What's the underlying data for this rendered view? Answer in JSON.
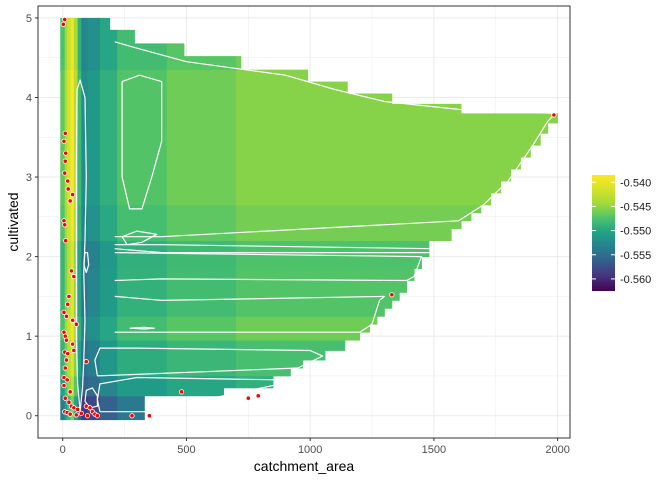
{
  "chart_data": {
    "type": "heatmap",
    "title": "",
    "xlabel": "catchment_area",
    "ylabel": "cultivated",
    "xlim": [
      -100,
      2050
    ],
    "ylim": [
      -0.28,
      5.15
    ],
    "x_ticks": [
      0,
      500,
      1000,
      1500,
      2000
    ],
    "x_tick_labels": [
      "0",
      "500",
      "1000",
      "1500",
      "2000"
    ],
    "y_ticks": [
      0,
      1,
      2,
      3,
      4,
      5
    ],
    "y_tick_labels": [
      "0",
      "1",
      "2",
      "3",
      "4",
      "5"
    ],
    "grid": true,
    "legend_position": "right",
    "color_scale": {
      "palette": "viridis",
      "min": -0.5625,
      "max": -0.5385,
      "breaks": [
        -0.54,
        -0.545,
        -0.55,
        -0.555,
        -0.56
      ],
      "break_labels": [
        "-0.540",
        "-0.545",
        "-0.550",
        "-0.555",
        "-0.560"
      ]
    },
    "colors": {
      "panel_border": "#333333",
      "grid": "#ebebeb",
      "contour": "#ffffff",
      "points": "#ff0000"
    },
    "y_steps": [
      {
        "y0": -0.05,
        "y1": 0.25,
        "xmax": 330
      },
      {
        "y0": 0.25,
        "y1": 0.35,
        "xmax": 650
      },
      {
        "y0": 0.35,
        "y1": 0.5,
        "xmax": 850
      },
      {
        "y0": 0.5,
        "y1": 0.6,
        "xmax": 920
      },
      {
        "y0": 0.6,
        "y1": 0.7,
        "xmax": 970
      },
      {
        "y0": 0.7,
        "y1": 0.82,
        "xmax": 1060
      },
      {
        "y0": 0.82,
        "y1": 0.95,
        "xmax": 1140
      },
      {
        "y0": 0.95,
        "y1": 1.05,
        "xmax": 1200
      },
      {
        "y0": 1.05,
        "y1": 1.15,
        "xmax": 1240
      },
      {
        "y0": 1.15,
        "y1": 1.25,
        "xmax": 1270
      },
      {
        "y0": 1.25,
        "y1": 1.35,
        "xmax": 1300
      },
      {
        "y0": 1.35,
        "y1": 1.45,
        "xmax": 1330
      },
      {
        "y0": 1.45,
        "y1": 1.55,
        "xmax": 1360
      },
      {
        "y0": 1.55,
        "y1": 1.7,
        "xmax": 1390
      },
      {
        "y0": 1.7,
        "y1": 1.85,
        "xmax": 1420
      },
      {
        "y0": 1.85,
        "y1": 2.0,
        "xmax": 1450
      },
      {
        "y0": 2.0,
        "y1": 2.2,
        "xmax": 1480
      },
      {
        "y0": 2.2,
        "y1": 2.35,
        "xmax": 1570
      },
      {
        "y0": 2.35,
        "y1": 2.45,
        "xmax": 1610
      },
      {
        "y0": 2.45,
        "y1": 2.55,
        "xmax": 1650
      },
      {
        "y0": 2.55,
        "y1": 2.65,
        "xmax": 1690
      },
      {
        "y0": 2.65,
        "y1": 2.8,
        "xmax": 1730
      },
      {
        "y0": 2.8,
        "y1": 2.95,
        "xmax": 1770
      },
      {
        "y0": 2.95,
        "y1": 3.1,
        "xmax": 1810
      },
      {
        "y0": 3.1,
        "y1": 3.25,
        "xmax": 1850
      },
      {
        "y0": 3.25,
        "y1": 3.4,
        "xmax": 1890
      },
      {
        "y0": 3.4,
        "y1": 3.55,
        "xmax": 1930
      },
      {
        "y0": 3.55,
        "y1": 3.68,
        "xmax": 1960
      },
      {
        "y0": 3.68,
        "y1": 3.8,
        "xmax": 2000
      },
      {
        "y0": 3.8,
        "y1": 3.92,
        "xmax": 1610
      },
      {
        "y0": 3.92,
        "y1": 4.05,
        "xmax": 1330
      },
      {
        "y0": 4.05,
        "y1": 4.2,
        "xmax": 1150
      },
      {
        "y0": 4.2,
        "y1": 4.35,
        "xmax": 990
      },
      {
        "y0": 4.35,
        "y1": 4.52,
        "xmax": 720
      },
      {
        "y0": 4.52,
        "y1": 4.68,
        "xmax": 490
      },
      {
        "y0": 4.68,
        "y1": 4.85,
        "xmax": 290
      },
      {
        "y0": 4.85,
        "y1": 5.0,
        "xmax": 190
      }
    ],
    "x_bands": [
      {
        "x0": -10,
        "x1": 8,
        "value": -0.5475
      },
      {
        "x0": 8,
        "x1": 18,
        "value": -0.5445
      },
      {
        "x0": 18,
        "x1": 32,
        "value": -0.542
      },
      {
        "x0": 32,
        "x1": 45,
        "value": -0.5395
      },
      {
        "x0": 45,
        "x1": 60,
        "value": -0.544
      },
      {
        "x0": 60,
        "x1": 75,
        "value": -0.549
      },
      {
        "x0": 75,
        "x1": 100,
        "value": -0.553
      },
      {
        "x0": 100,
        "x1": 150,
        "value": -0.552
      },
      {
        "x0": 150,
        "x1": 220,
        "value": -0.55
      },
      {
        "x0": 220,
        "x1": 420,
        "value": -0.548
      },
      {
        "x0": 420,
        "x1": 700,
        "value": -0.547
      },
      {
        "x0": 700,
        "x1": 2050,
        "value": -0.5462
      }
    ],
    "y_modulation": [
      {
        "y0": -0.05,
        "y1": 0.25,
        "delta": -0.006
      },
      {
        "y0": 0.25,
        "y1": 0.5,
        "delta": -0.003
      },
      {
        "y0": 0.5,
        "y1": 0.9,
        "delta": -0.0015
      },
      {
        "y0": 0.9,
        "y1": 1.3,
        "delta": 0.0
      },
      {
        "y0": 1.3,
        "y1": 1.9,
        "delta": -0.001
      },
      {
        "y0": 1.9,
        "y1": 2.2,
        "delta": -0.0012
      },
      {
        "y0": 2.2,
        "y1": 2.6,
        "delta": 0.0002
      },
      {
        "y0": 2.6,
        "y1": 4.3,
        "delta": 0.0008
      },
      {
        "y0": 4.3,
        "y1": 5.0,
        "delta": 0.0
      }
    ],
    "contours": [
      {
        "points": [
          [
            150,
            0.05
          ],
          [
            330,
            0.05
          ],
          [
            650,
            0.25
          ],
          [
            850,
            0.38
          ],
          [
            880,
            0.45
          ],
          [
            300,
            0.48
          ],
          [
            150,
            0.4
          ],
          [
            140,
            0.2
          ],
          [
            150,
            0.05
          ]
        ]
      },
      {
        "points": [
          [
            140,
            0.5
          ],
          [
            950,
            0.6
          ],
          [
            1050,
            0.75
          ],
          [
            1000,
            0.82
          ],
          [
            300,
            0.85
          ],
          [
            150,
            0.85
          ],
          [
            130,
            0.7
          ],
          [
            140,
            0.5
          ]
        ]
      },
      {
        "points": [
          [
            210,
            1.05
          ],
          [
            1200,
            1.05
          ],
          [
            1250,
            1.15
          ],
          [
            1280,
            1.45
          ],
          [
            1300,
            1.5
          ],
          [
            400,
            1.45
          ],
          [
            210,
            1.5
          ]
        ]
      },
      {
        "points": [
          [
            210,
            2.05
          ],
          [
            1450,
            2.0
          ],
          [
            1420,
            1.75
          ],
          [
            1390,
            1.7
          ],
          [
            400,
            1.72
          ],
          [
            210,
            1.7
          ]
        ]
      },
      {
        "points": [
          [
            210,
            2.1
          ],
          [
            400,
            2.05
          ],
          [
            1480,
            2.05
          ],
          [
            1500,
            2.1
          ],
          [
            400,
            2.15
          ],
          [
            210,
            2.15
          ]
        ]
      },
      {
        "points": [
          [
            210,
            2.25
          ],
          [
            400,
            2.25
          ],
          [
            1600,
            2.45
          ],
          [
            1700,
            2.65
          ],
          [
            1800,
            2.95
          ],
          [
            1900,
            3.4
          ],
          [
            1960,
            3.7
          ],
          [
            1990,
            3.8
          ],
          [
            1600,
            3.85
          ],
          [
            1300,
            3.95
          ],
          [
            1100,
            4.1
          ],
          [
            900,
            4.28
          ],
          [
            500,
            4.45
          ],
          [
            300,
            4.62
          ],
          [
            210,
            4.7
          ]
        ]
      },
      {
        "points": [
          [
            240,
            2.25
          ],
          [
            300,
            2.32
          ],
          [
            380,
            2.28
          ],
          [
            320,
            2.18
          ],
          [
            260,
            2.15
          ],
          [
            240,
            2.25
          ]
        ]
      },
      {
        "points": [
          [
            240,
            3.0
          ],
          [
            270,
            2.6
          ],
          [
            320,
            2.6
          ],
          [
            360,
            3.0
          ],
          [
            400,
            3.45
          ],
          [
            400,
            4.2
          ],
          [
            310,
            4.28
          ],
          [
            240,
            4.2
          ],
          [
            240,
            3.45
          ],
          [
            240,
            3.0
          ]
        ]
      },
      {
        "points": [
          [
            70,
            0.05
          ],
          [
            60,
            0.4
          ],
          [
            55,
            1.0
          ],
          [
            55,
            1.6
          ],
          [
            55,
            2.4
          ],
          [
            55,
            3.2
          ],
          [
            58,
            4.1
          ],
          [
            70,
            4.22
          ],
          [
            90,
            4.0
          ],
          [
            95,
            3.0
          ],
          [
            90,
            2.2
          ],
          [
            85,
            1.8
          ],
          [
            90,
            1.2
          ],
          [
            85,
            0.7
          ],
          [
            80,
            0.35
          ],
          [
            70,
            0.05
          ]
        ]
      },
      {
        "points": [
          [
            90,
            0.18
          ],
          [
            110,
            0.1
          ],
          [
            140,
            0.12
          ],
          [
            140,
            0.25
          ],
          [
            120,
            0.35
          ],
          [
            95,
            0.32
          ],
          [
            90,
            0.18
          ]
        ]
      },
      {
        "points": [
          [
            85,
            1.9
          ],
          [
            95,
            1.8
          ],
          [
            105,
            1.9
          ],
          [
            100,
            2.05
          ],
          [
            90,
            2.05
          ],
          [
            85,
            1.9
          ]
        ]
      },
      {
        "points": [
          [
            270,
            1.1
          ],
          [
            330,
            1.09
          ],
          [
            370,
            1.1
          ],
          [
            330,
            1.11
          ],
          [
            270,
            1.1
          ]
        ]
      }
    ],
    "points": [
      [
        8,
        4.98
      ],
      [
        2,
        4.92
      ],
      [
        10,
        3.55
      ],
      [
        5,
        3.45
      ],
      [
        12,
        3.3
      ],
      [
        10,
        3.2
      ],
      [
        8,
        3.05
      ],
      [
        20,
        2.95
      ],
      [
        22,
        2.85
      ],
      [
        40,
        2.78
      ],
      [
        30,
        2.7
      ],
      [
        5,
        2.45
      ],
      [
        8,
        2.4
      ],
      [
        12,
        2.2
      ],
      [
        35,
        1.82
      ],
      [
        45,
        1.75
      ],
      [
        25,
        1.5
      ],
      [
        20,
        1.4
      ],
      [
        5,
        1.3
      ],
      [
        15,
        1.25
      ],
      [
        40,
        1.2
      ],
      [
        55,
        1.15
      ],
      [
        5,
        1.05
      ],
      [
        10,
        1.0
      ],
      [
        15,
        0.95
      ],
      [
        40,
        0.9
      ],
      [
        45,
        0.82
      ],
      [
        8,
        0.8
      ],
      [
        20,
        0.78
      ],
      [
        15,
        0.7
      ],
      [
        95,
        0.68
      ],
      [
        10,
        0.6
      ],
      [
        5,
        0.48
      ],
      [
        18,
        0.45
      ],
      [
        5,
        0.38
      ],
      [
        30,
        0.3
      ],
      [
        10,
        0.22
      ],
      [
        25,
        0.17
      ],
      [
        35,
        0.12
      ],
      [
        45,
        0.1
      ],
      [
        60,
        0.08
      ],
      [
        8,
        0.05
      ],
      [
        18,
        0.04
      ],
      [
        30,
        0.02
      ],
      [
        55,
        0.01
      ],
      [
        75,
        0.03
      ],
      [
        95,
        0.12
      ],
      [
        110,
        0.1
      ],
      [
        120,
        0.05
      ],
      [
        130,
        0.02
      ],
      [
        100,
        0.0
      ],
      [
        140,
        0.0
      ],
      [
        280,
        0.0
      ],
      [
        350,
        0.0
      ],
      [
        480,
        0.3
      ],
      [
        750,
        0.22
      ],
      [
        790,
        0.25
      ],
      [
        1330,
        1.52
      ],
      [
        1985,
        3.78
      ]
    ]
  }
}
